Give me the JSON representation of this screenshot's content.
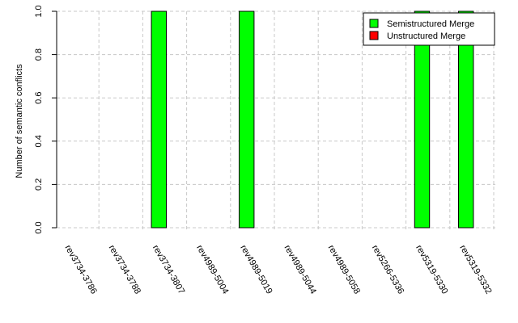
{
  "chart_data": {
    "type": "bar",
    "ylabel": "Number of semantic conflicts",
    "xlabel": "",
    "title": "",
    "ylim": [
      0,
      1
    ],
    "yticks": [
      "0.0",
      "0.2",
      "0.4",
      "0.6",
      "0.8",
      "1.0"
    ],
    "grid": true,
    "legend_position": "top-right",
    "categories": [
      "rev3734-3786",
      "rev3734-3788",
      "rev3734-3807",
      "rev4989-5004",
      "rev4989-5019",
      "rev4989-5044",
      "rev4989-5058",
      "rev5266-5336",
      "rev5319-5330",
      "rev5319-5332"
    ],
    "series": [
      {
        "name": "Semistructured Merge",
        "color": "#00ff00",
        "values": [
          0,
          0,
          1,
          0,
          1,
          0,
          0,
          0,
          1,
          1
        ]
      },
      {
        "name": "Unstructured Merge",
        "color": "#ff0000",
        "values": [
          0,
          0,
          0,
          0,
          0,
          0,
          0,
          0,
          0,
          0
        ]
      }
    ]
  }
}
